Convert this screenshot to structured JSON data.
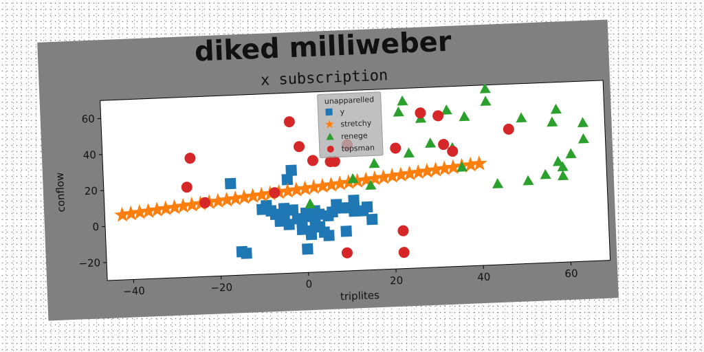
{
  "figure": {
    "suptitle": "diked milliweber",
    "background": "#808080"
  },
  "chart_data": {
    "type": "scatter",
    "title": "x subscription",
    "xlabel": "triplites",
    "ylabel": "conflow",
    "xlim": [
      -46,
      69
    ],
    "ylim": [
      -30,
      70
    ],
    "xticks": [
      -40,
      -20,
      0,
      20,
      40,
      60
    ],
    "yticks": [
      -20,
      0,
      20,
      40,
      60
    ],
    "grid": false,
    "legend": {
      "title": "unapparelled",
      "placement": "top-center"
    },
    "series": [
      {
        "name": "y",
        "marker": "square",
        "color": "#1f77b4",
        "points": [
          [
            -17,
            21
          ],
          [
            -15,
            -17
          ],
          [
            -14,
            -18
          ],
          [
            -8,
            5
          ],
          [
            -7,
            3
          ],
          [
            -6,
            -1
          ],
          [
            -5,
            6
          ],
          [
            -5,
            1
          ],
          [
            -4,
            22
          ],
          [
            -3,
            27
          ],
          [
            -2,
            0
          ],
          [
            -1,
            -2
          ],
          [
            0,
            3
          ],
          [
            1,
            1
          ],
          [
            1,
            -7
          ],
          [
            2,
            -1
          ],
          [
            2,
            4
          ],
          [
            3,
            2
          ],
          [
            3,
            -5
          ],
          [
            4,
            -8
          ],
          [
            5,
            -10
          ],
          [
            6,
            3
          ],
          [
            7,
            7
          ],
          [
            8,
            5
          ],
          [
            9,
            -8
          ],
          [
            10,
            5
          ],
          [
            11,
            9
          ],
          [
            11,
            3
          ],
          [
            13,
            3
          ],
          [
            14,
            5
          ],
          [
            -9,
            8
          ],
          [
            -10,
            6
          ],
          [
            -4,
            -3
          ],
          [
            -1,
            -6
          ],
          [
            0,
            -17
          ],
          [
            -3,
            5
          ],
          [
            5,
            1
          ],
          [
            1,
            -9
          ],
          [
            15,
            -2
          ]
        ]
      },
      {
        "name": "stretchy",
        "marker": "star",
        "color": "#ff7f0e",
        "points": [
          [
            -42,
            6
          ],
          [
            -40,
            6.5
          ],
          [
            -38,
            7
          ],
          [
            -36,
            7.5
          ],
          [
            -34,
            8
          ],
          [
            -32,
            8.5
          ],
          [
            -30,
            9
          ],
          [
            -28,
            9.5
          ],
          [
            -26,
            10
          ],
          [
            -24,
            10.5
          ],
          [
            -22,
            11
          ],
          [
            -20,
            11.5
          ],
          [
            -18,
            12
          ],
          [
            -16,
            12.5
          ],
          [
            -14,
            13
          ],
          [
            -12,
            13.5
          ],
          [
            -10,
            14
          ],
          [
            -8,
            14.5
          ],
          [
            -6,
            15
          ],
          [
            -4,
            15.5
          ],
          [
            -2,
            16
          ],
          [
            0,
            16.5
          ],
          [
            2,
            17
          ],
          [
            4,
            17.5
          ],
          [
            6,
            18
          ],
          [
            8,
            18.5
          ],
          [
            10,
            19
          ],
          [
            12,
            19.5
          ],
          [
            14,
            20
          ],
          [
            16,
            20.5
          ],
          [
            18,
            21
          ],
          [
            20,
            21.5
          ],
          [
            22,
            22
          ],
          [
            24,
            22.5
          ],
          [
            26,
            23
          ],
          [
            28,
            23.5
          ],
          [
            30,
            24
          ],
          [
            32,
            24.5
          ],
          [
            34,
            25
          ],
          [
            36,
            25.5
          ],
          [
            38,
            26
          ],
          [
            40,
            26.5
          ]
        ]
      },
      {
        "name": "renege",
        "marker": "triangle",
        "color": "#2ca02c",
        "points": [
          [
            1,
            8
          ],
          [
            11,
            21
          ],
          [
            15,
            17
          ],
          [
            16,
            29
          ],
          [
            22,
            57
          ],
          [
            23,
            63
          ],
          [
            24,
            34
          ],
          [
            27,
            53
          ],
          [
            29,
            39
          ],
          [
            33,
            57
          ],
          [
            34,
            36
          ],
          [
            36,
            25
          ],
          [
            37,
            53
          ],
          [
            42,
            61
          ],
          [
            42,
            68
          ],
          [
            44,
            15
          ],
          [
            50,
            51
          ],
          [
            51,
            16
          ],
          [
            55,
            19
          ],
          [
            57,
            48
          ],
          [
            58,
            55
          ],
          [
            58,
            26
          ],
          [
            59,
            23
          ],
          [
            59,
            18
          ],
          [
            61,
            30
          ],
          [
            64,
            47
          ],
          [
            64,
            38
          ]
        ]
      },
      {
        "name": "topsman",
        "marker": "circle",
        "color": "#d62728",
        "points": [
          [
            -26,
            36
          ],
          [
            -27,
            20
          ],
          [
            -23,
            11
          ],
          [
            -7,
            15
          ],
          [
            -3,
            54
          ],
          [
            -1,
            40
          ],
          [
            2,
            32
          ],
          [
            6,
            31
          ],
          [
            7,
            31
          ],
          [
            9,
            -20
          ],
          [
            10,
            40
          ],
          [
            21,
            37
          ],
          [
            22,
            -9
          ],
          [
            22,
            -21
          ],
          [
            27,
            56
          ],
          [
            31,
            54
          ],
          [
            32,
            38
          ],
          [
            34,
            34
          ],
          [
            47,
            45
          ]
        ]
      }
    ]
  }
}
